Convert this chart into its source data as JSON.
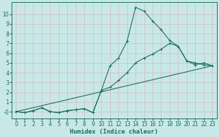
{
  "xlabel": "Humidex (Indice chaleur)",
  "bg_color": "#c8e8e8",
  "plot_bg_color": "#c8e8e8",
  "grid_color": "#b0c8c8",
  "line_color": "#1a6b5a",
  "xlim": [
    -0.5,
    23.5
  ],
  "ylim": [
    -0.7,
    11.2
  ],
  "xticks": [
    0,
    1,
    2,
    3,
    4,
    5,
    6,
    7,
    8,
    9,
    10,
    11,
    12,
    13,
    14,
    15,
    16,
    17,
    18,
    19,
    20,
    21,
    22,
    23
  ],
  "yticks": [
    0,
    1,
    2,
    3,
    4,
    5,
    6,
    7,
    8,
    9,
    10
  ],
  "ytick_labels": [
    "-0",
    "1",
    "2",
    "3",
    "4",
    "5",
    "6",
    "7",
    "8",
    "9",
    "10"
  ],
  "line1_x": [
    0,
    1,
    2,
    3,
    4,
    5,
    6,
    7,
    8,
    9,
    10,
    11,
    12,
    13,
    14,
    15,
    16,
    17,
    18,
    19,
    20,
    21,
    22,
    23
  ],
  "line1_y": [
    0.0,
    -0.1,
    0.1,
    0.4,
    0.0,
    -0.1,
    0.1,
    0.2,
    0.3,
    -0.1,
    2.2,
    4.7,
    5.5,
    7.2,
    10.7,
    10.3,
    9.3,
    8.4,
    7.3,
    6.7,
    5.2,
    4.8,
    5.0,
    4.7
  ],
  "line2_x": [
    0,
    1,
    2,
    3,
    4,
    5,
    6,
    7,
    8,
    9,
    10,
    11,
    12,
    13,
    14,
    15,
    16,
    17,
    18,
    19,
    20,
    21,
    22,
    23
  ],
  "line2_y": [
    0.0,
    -0.1,
    0.1,
    0.4,
    0.0,
    -0.1,
    0.1,
    0.2,
    0.3,
    -0.1,
    2.2,
    2.5,
    3.2,
    4.0,
    5.0,
    5.5,
    5.9,
    6.4,
    7.0,
    6.7,
    5.2,
    5.0,
    4.8,
    4.7
  ],
  "line3_x": [
    0,
    23
  ],
  "line3_y": [
    0.0,
    4.7
  ],
  "xlabel_fontsize": 6.5,
  "tick_fontsize": 5.5
}
